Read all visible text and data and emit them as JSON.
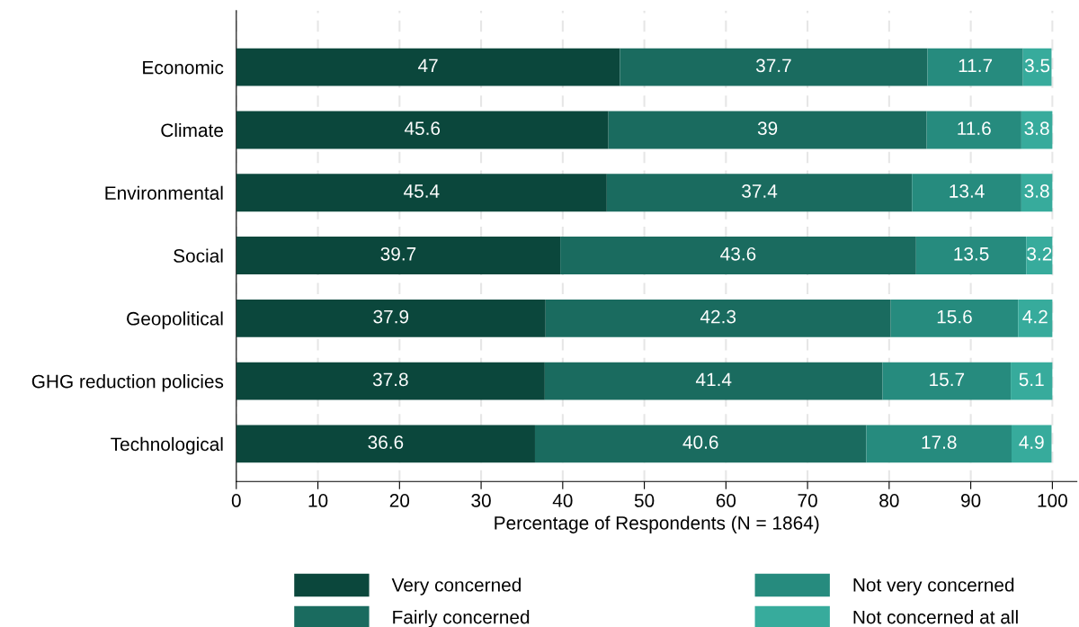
{
  "chart_data": {
    "type": "bar",
    "orientation": "horizontal",
    "stacked": true,
    "xlabel": "Percentage of Respondents (N = 1864)",
    "categories": [
      "Economic",
      "Climate",
      "Environmental",
      "Social",
      "Geopolitical",
      "GHG reduction policies",
      "Technological"
    ],
    "series": [
      {
        "name": "Very concerned",
        "color": "#0b473c",
        "values": [
          47,
          45.6,
          45.4,
          39.7,
          37.9,
          37.8,
          36.6
        ]
      },
      {
        "name": "Fairly concerned",
        "color": "#1a6b5f",
        "values": [
          37.7,
          39,
          37.4,
          43.6,
          42.3,
          41.4,
          40.6
        ]
      },
      {
        "name": "Not very concerned",
        "color": "#268b7e",
        "values": [
          11.7,
          11.6,
          13.4,
          13.5,
          15.6,
          15.7,
          17.8
        ]
      },
      {
        "name": "Not concerned at all",
        "color": "#37ab9c",
        "values": [
          3.5,
          3.8,
          3.8,
          3.2,
          4.2,
          5.1,
          4.9
        ]
      }
    ],
    "xlim": [
      0,
      103
    ],
    "xticks": [
      0,
      10,
      20,
      30,
      40,
      50,
      60,
      70,
      80,
      90,
      100
    ],
    "grid": "x",
    "legend": "bottom",
    "data_labels": true
  }
}
